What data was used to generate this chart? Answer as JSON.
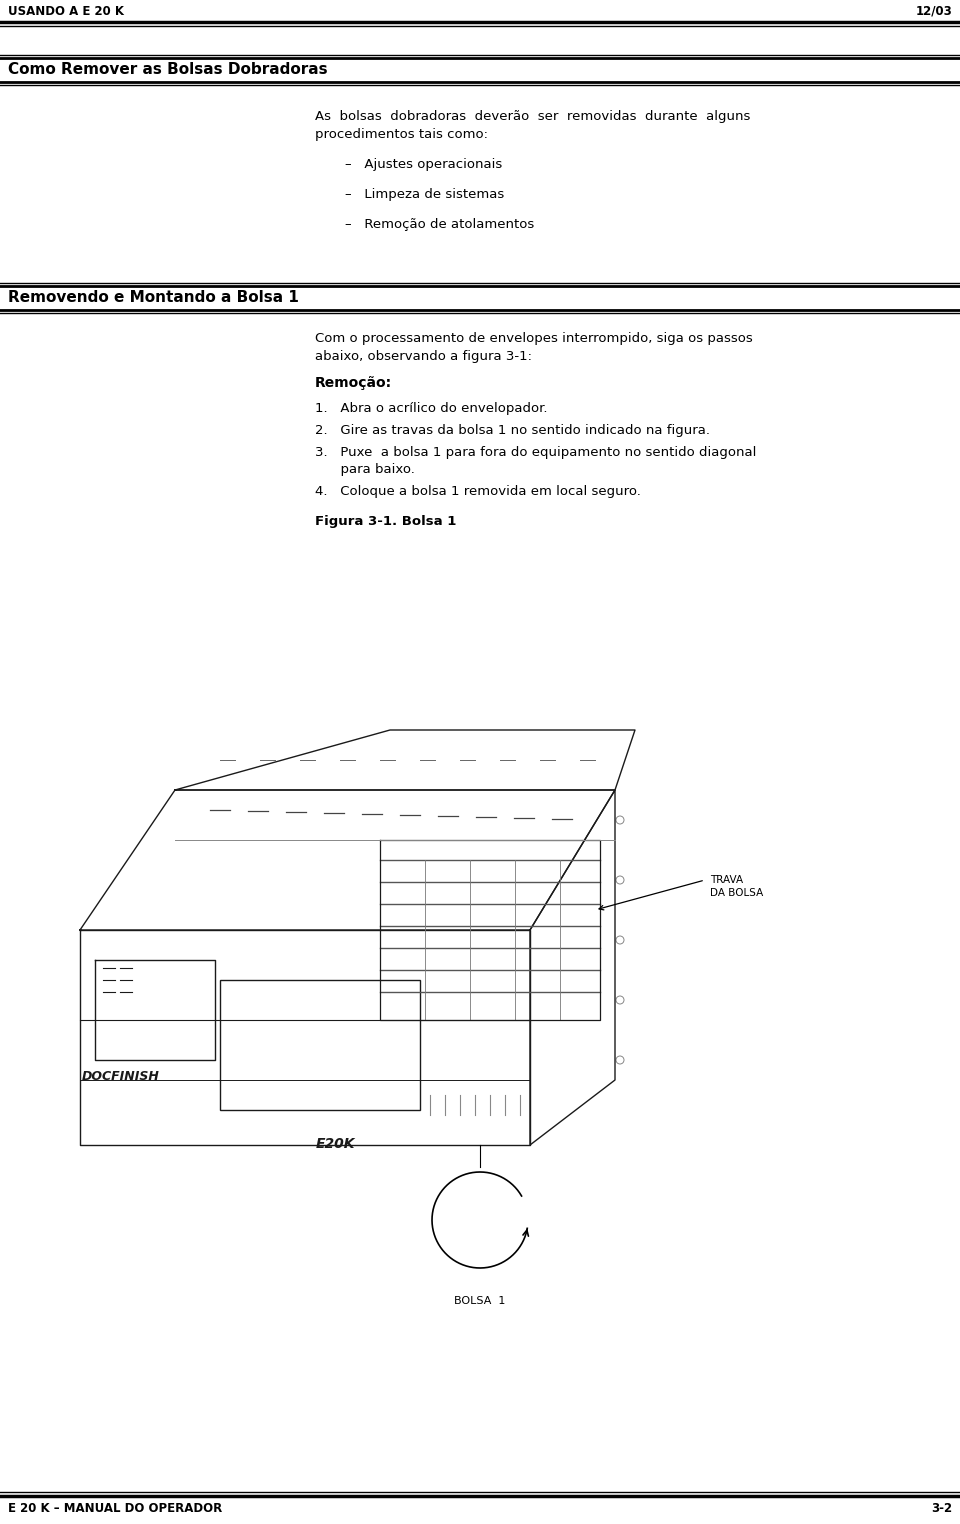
{
  "header_left": "USANDO A E 20 K",
  "header_right": "12/03",
  "footer_left": "E 20 K – MANUAL DO OPERADOR",
  "footer_right": "3-2",
  "section1_title": "Como Remover as Bolsas Dobradoras",
  "section1_body_line1": "As  bolsas  dobradoras  deverão  ser  removidas  durante  alguns",
  "section1_body_line2": "procedimentos tais como:",
  "section1_bullets": [
    "–   Ajustes operacionais",
    "–   Limpeza de sistemas",
    "–   Remoção de atolamentos"
  ],
  "section2_title": "Removendo e Montando a Bolsa 1",
  "section2_body_line1": "Com o processamento de envelopes interrompido, siga os passos",
  "section2_body_line2": "abaixo, observando a figura 3-1:",
  "section2_bold_label": "Remoção:",
  "step1": "1.   Abra o acrílico do envelopador.",
  "step2": "2.   Gire as travas da bolsa 1 no sentido indicado na figura.",
  "step3a": "3.   Puxe  a bolsa 1 para fora do equipamento no sentido diagonal",
  "step3b": "      para baixo.",
  "step4": "4.   Coloque a bolsa 1 removida em local seguro.",
  "figure_caption": "Figura 3-1. Bolsa 1",
  "label_trava": "TRAVA\nDA BOLSA",
  "label_bolsa": "BOLSA  1",
  "label_e20k": "E20K",
  "label_docfinish": "DOCFINISH",
  "bg_color": "#ffffff",
  "text_color": "#000000",
  "line_color": "#333333"
}
